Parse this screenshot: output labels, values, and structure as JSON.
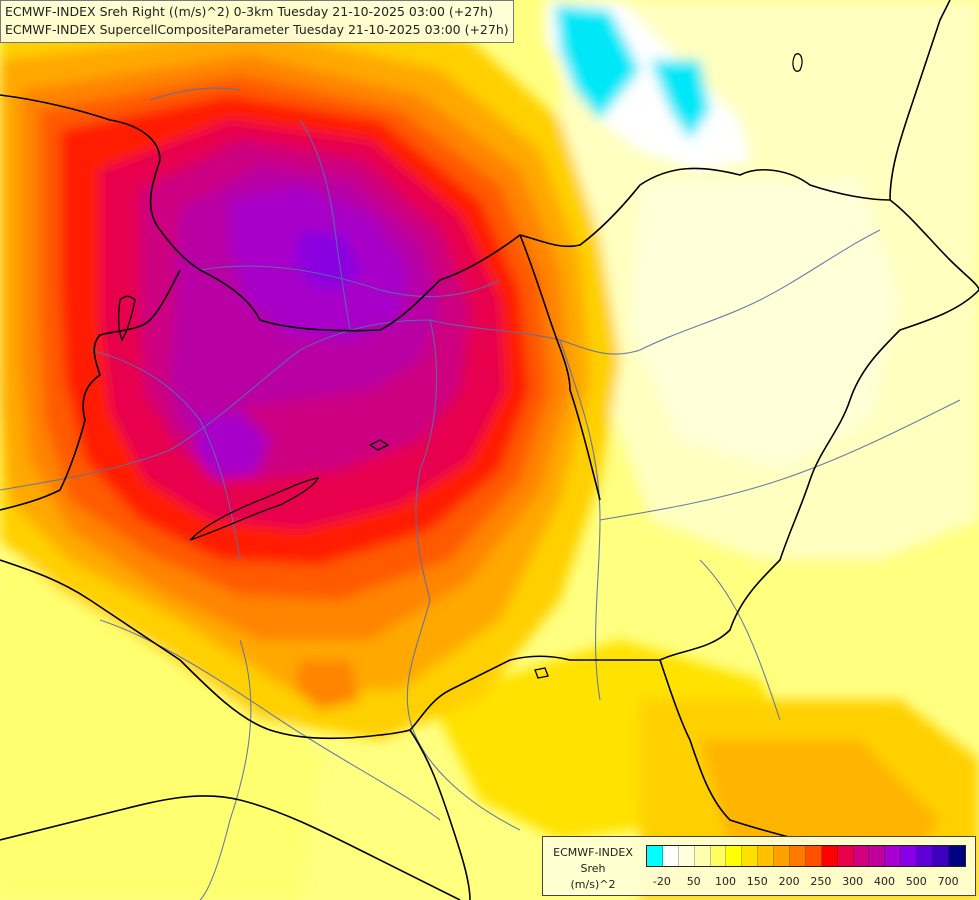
{
  "titles": {
    "line1": "ECMWF-INDEX Sreh Right ((m/s)^2) 0-3km Tuesday 21-10-2025 03:00 (+27h)",
    "line2": "ECMWF-INDEX SupercellCompositeParameter Tuesday 21-10-2025 03:00 (+27h)"
  },
  "legend": {
    "model": "ECMWF-INDEX",
    "variable": "Sreh",
    "unit": "(m/s)^2",
    "colors": [
      "#00ffff",
      "#ffffff",
      "#ffffdc",
      "#ffffb0",
      "#ffff60",
      "#ffff00",
      "#ffe000",
      "#ffc000",
      "#ffa000",
      "#ff7800",
      "#ff5000",
      "#ff0000",
      "#e8004a",
      "#d0007e",
      "#c0009c",
      "#a800d0",
      "#8800e8",
      "#6000d8",
      "#3c00c0",
      "#000080"
    ],
    "tick_labels": [
      "-20",
      "50",
      "100",
      "150",
      "200",
      "250",
      "300",
      "400",
      "500",
      "700"
    ]
  },
  "colors": {
    "border": "#000000",
    "river": "#5870a8",
    "coast": "#000000"
  }
}
